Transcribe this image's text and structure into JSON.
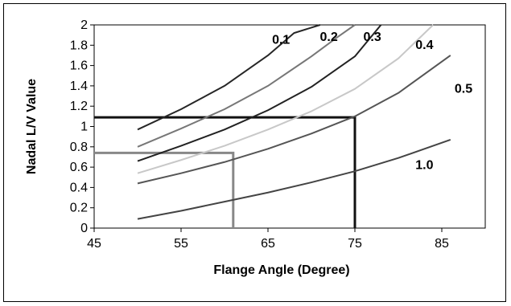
{
  "chart_data": {
    "type": "line",
    "title": "",
    "xlabel": "Flange Angle (Degree)",
    "ylabel": "Nadal L/V Value",
    "xlim": [
      45,
      90
    ],
    "ylim": [
      0,
      2
    ],
    "xticks": [
      45,
      55,
      65,
      75,
      85
    ],
    "yticks": [
      0,
      0.2,
      0.4,
      0.6,
      0.8,
      1,
      1.2,
      1.4,
      1.6,
      1.8,
      2
    ],
    "grid": false,
    "legend": "none",
    "series": [
      {
        "name": "0.1",
        "color": "#262626",
        "x": [
          50,
          55,
          60,
          65,
          68,
          71
        ],
        "y": [
          0.97,
          1.17,
          1.4,
          1.7,
          1.92,
          2.0
        ]
      },
      {
        "name": "0.2",
        "color": "#777777",
        "x": [
          50,
          55,
          60,
          65,
          70,
          73,
          75
        ],
        "y": [
          0.8,
          0.98,
          1.17,
          1.4,
          1.69,
          1.88,
          2.0
        ]
      },
      {
        "name": "0.3",
        "color": "#222222",
        "x": [
          50,
          55,
          60,
          65,
          70,
          75,
          78
        ],
        "y": [
          0.66,
          0.81,
          0.97,
          1.16,
          1.39,
          1.69,
          2.0
        ]
      },
      {
        "name": "0.4",
        "color": "#c8c8c8",
        "x": [
          50,
          55,
          60,
          65,
          70,
          75,
          80,
          84
        ],
        "y": [
          0.54,
          0.67,
          0.81,
          0.97,
          1.15,
          1.37,
          1.67,
          2.0
        ]
      },
      {
        "name": "0.5",
        "color": "#555555",
        "x": [
          50,
          55,
          60,
          65,
          70,
          75,
          80,
          86
        ],
        "y": [
          0.44,
          0.54,
          0.65,
          0.78,
          0.93,
          1.1,
          1.33,
          1.7
        ]
      },
      {
        "name": "1.0",
        "color": "#444444",
        "x": [
          50,
          55,
          60,
          65,
          70,
          75,
          80,
          86
        ],
        "y": [
          0.09,
          0.17,
          0.26,
          0.35,
          0.45,
          0.56,
          0.69,
          0.87
        ]
      }
    ],
    "curve_labels": [
      {
        "text": "0.1",
        "x": 66.5,
        "y": 1.86
      },
      {
        "text": "0.2",
        "x": 72.0,
        "y": 1.89
      },
      {
        "text": "0.3",
        "x": 77.0,
        "y": 1.89
      },
      {
        "text": "0.4",
        "x": 83.0,
        "y": 1.81
      },
      {
        "text": "0.5",
        "x": 87.5,
        "y": 1.38
      },
      {
        "text": "1.0",
        "x": 83.0,
        "y": 0.63
      }
    ],
    "guide_lines": [
      {
        "color": "#111111",
        "points": [
          [
            45,
            1.09
          ],
          [
            75,
            1.09
          ],
          [
            75,
            0
          ]
        ]
      },
      {
        "color": "#888888",
        "points": [
          [
            45,
            0.74
          ],
          [
            61,
            0.74
          ],
          [
            61,
            0
          ]
        ]
      }
    ]
  }
}
